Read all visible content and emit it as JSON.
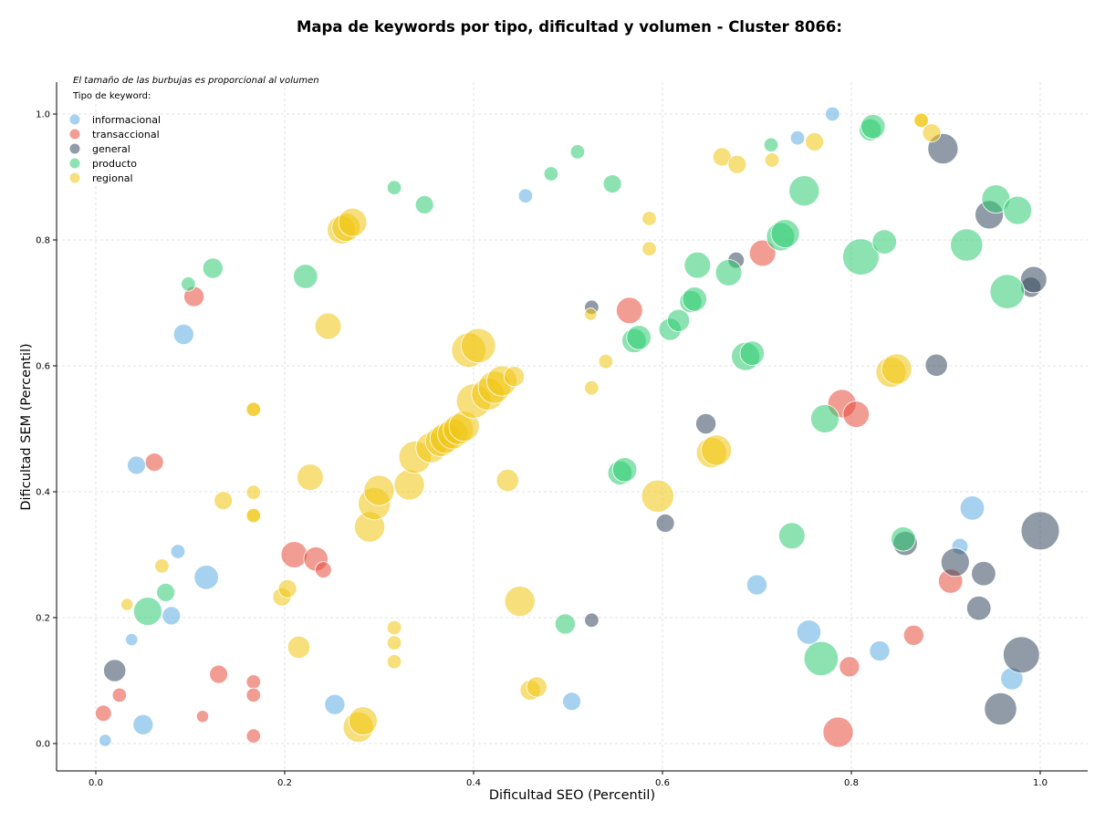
{
  "chart_data": {
    "type": "scatter",
    "title": "Mapa de keywords por tipo, dificultad y volumen - Cluster 8066:",
    "xlabel": "Dificultad SEO (Percentil)",
    "ylabel": "Dificultad SEM (Percentil)",
    "xlim": [
      -0.04,
      1.05
    ],
    "ylim": [
      -0.045,
      1.05
    ],
    "xticks": [
      "0.0",
      "0.2",
      "0.4",
      "0.6",
      "0.8",
      "1.0"
    ],
    "yticks": [
      "0.0",
      "0.2",
      "0.4",
      "0.6",
      "0.8",
      "1.0"
    ],
    "grid": true,
    "annotation": "El tamaño de las burbujas es proporcional al volumen",
    "legend": {
      "title": "Tipo de keyword:",
      "position": "top-left",
      "entries": [
        "informacional",
        "transaccional",
        "general",
        "producto",
        "regional"
      ]
    },
    "colors": {
      "informacional": "#5dade2",
      "transaccional": "#e74c3c",
      "general": "#34495e",
      "producto": "#2ecc71",
      "regional": "#f1c40f"
    },
    "series": [
      {
        "name": "informacional",
        "points": [
          {
            "x": 0.01,
            "y": 0.005,
            "size": 2
          },
          {
            "x": 0.038,
            "y": 0.165,
            "size": 2
          },
          {
            "x": 0.043,
            "y": 0.442,
            "size": 5
          },
          {
            "x": 0.05,
            "y": 0.03,
            "size": 6
          },
          {
            "x": 0.08,
            "y": 0.203,
            "size": 5
          },
          {
            "x": 0.087,
            "y": 0.305,
            "size": 3
          },
          {
            "x": 0.093,
            "y": 0.65,
            "size": 6
          },
          {
            "x": 0.117,
            "y": 0.264,
            "size": 8
          },
          {
            "x": 0.253,
            "y": 0.062,
            "size": 6
          },
          {
            "x": 0.455,
            "y": 0.87,
            "size": 3
          },
          {
            "x": 0.504,
            "y": 0.067,
            "size": 5
          },
          {
            "x": 0.7,
            "y": 0.252,
            "size": 6
          },
          {
            "x": 0.743,
            "y": 0.962,
            "size": 3
          },
          {
            "x": 0.755,
            "y": 0.177,
            "size": 8
          },
          {
            "x": 0.78,
            "y": 1.0,
            "size": 3
          },
          {
            "x": 0.83,
            "y": 0.147,
            "size": 6
          },
          {
            "x": 0.915,
            "y": 0.313,
            "size": 4
          },
          {
            "x": 0.928,
            "y": 0.374,
            "size": 8
          },
          {
            "x": 0.97,
            "y": 0.103,
            "size": 7
          }
        ]
      },
      {
        "name": "transaccional",
        "points": [
          {
            "x": 0.008,
            "y": 0.048,
            "size": 4
          },
          {
            "x": 0.025,
            "y": 0.077,
            "size": 3
          },
          {
            "x": 0.062,
            "y": 0.447,
            "size": 5
          },
          {
            "x": 0.104,
            "y": 0.71,
            "size": 6
          },
          {
            "x": 0.113,
            "y": 0.043,
            "size": 2
          },
          {
            "x": 0.13,
            "y": 0.11,
            "size": 5
          },
          {
            "x": 0.167,
            "y": 0.098,
            "size": 3
          },
          {
            "x": 0.167,
            "y": 0.077,
            "size": 3
          },
          {
            "x": 0.167,
            "y": 0.012,
            "size": 3
          },
          {
            "x": 0.21,
            "y": 0.3,
            "size": 9
          },
          {
            "x": 0.233,
            "y": 0.293,
            "size": 8
          },
          {
            "x": 0.241,
            "y": 0.276,
            "size": 4
          },
          {
            "x": 0.565,
            "y": 0.688,
            "size": 9
          },
          {
            "x": 0.706,
            "y": 0.779,
            "size": 9
          },
          {
            "x": 0.786,
            "y": 0.018,
            "size": 11
          },
          {
            "x": 0.79,
            "y": 0.54,
            "size": 10
          },
          {
            "x": 0.798,
            "y": 0.122,
            "size": 6
          },
          {
            "x": 0.805,
            "y": 0.523,
            "size": 9
          },
          {
            "x": 0.866,
            "y": 0.172,
            "size": 6
          },
          {
            "x": 0.905,
            "y": 0.258,
            "size": 8
          }
        ]
      },
      {
        "name": "general",
        "points": [
          {
            "x": 0.02,
            "y": 0.116,
            "size": 7
          },
          {
            "x": 0.525,
            "y": 0.693,
            "size": 3
          },
          {
            "x": 0.525,
            "y": 0.196,
            "size": 3
          },
          {
            "x": 0.603,
            "y": 0.35,
            "size": 5
          },
          {
            "x": 0.646,
            "y": 0.508,
            "size": 6
          },
          {
            "x": 0.678,
            "y": 0.768,
            "size": 4
          },
          {
            "x": 0.89,
            "y": 0.601,
            "size": 7
          },
          {
            "x": 0.897,
            "y": 0.945,
            "size": 11
          },
          {
            "x": 0.857,
            "y": 0.318,
            "size": 8
          },
          {
            "x": 0.91,
            "y": 0.288,
            "size": 10
          },
          {
            "x": 0.935,
            "y": 0.215,
            "size": 8
          },
          {
            "x": 0.94,
            "y": 0.27,
            "size": 8
          },
          {
            "x": 0.946,
            "y": 0.84,
            "size": 10
          },
          {
            "x": 0.958,
            "y": 0.055,
            "size": 12
          },
          {
            "x": 0.98,
            "y": 0.141,
            "size": 14
          },
          {
            "x": 0.99,
            "y": 0.725,
            "size": 6
          },
          {
            "x": 0.993,
            "y": 0.737,
            "size": 9
          },
          {
            "x": 1.0,
            "y": 0.338,
            "size": 15
          }
        ]
      },
      {
        "name": "producto",
        "points": [
          {
            "x": 0.055,
            "y": 0.21,
            "size": 10
          },
          {
            "x": 0.074,
            "y": 0.24,
            "size": 5
          },
          {
            "x": 0.098,
            "y": 0.73,
            "size": 3
          },
          {
            "x": 0.124,
            "y": 0.755,
            "size": 6
          },
          {
            "x": 0.222,
            "y": 0.742,
            "size": 8
          },
          {
            "x": 0.316,
            "y": 0.883,
            "size": 3
          },
          {
            "x": 0.348,
            "y": 0.856,
            "size": 5
          },
          {
            "x": 0.482,
            "y": 0.905,
            "size": 3
          },
          {
            "x": 0.497,
            "y": 0.19,
            "size": 6
          },
          {
            "x": 0.51,
            "y": 0.94,
            "size": 3
          },
          {
            "x": 0.547,
            "y": 0.889,
            "size": 5
          },
          {
            "x": 0.555,
            "y": 0.43,
            "size": 8
          },
          {
            "x": 0.56,
            "y": 0.435,
            "size": 8
          },
          {
            "x": 0.57,
            "y": 0.64,
            "size": 8
          },
          {
            "x": 0.575,
            "y": 0.645,
            "size": 8
          },
          {
            "x": 0.608,
            "y": 0.658,
            "size": 7
          },
          {
            "x": 0.617,
            "y": 0.672,
            "size": 7
          },
          {
            "x": 0.63,
            "y": 0.702,
            "size": 7
          },
          {
            "x": 0.634,
            "y": 0.706,
            "size": 8
          },
          {
            "x": 0.637,
            "y": 0.76,
            "size": 9
          },
          {
            "x": 0.67,
            "y": 0.748,
            "size": 9
          },
          {
            "x": 0.688,
            "y": 0.615,
            "size": 10
          },
          {
            "x": 0.695,
            "y": 0.62,
            "size": 8
          },
          {
            "x": 0.715,
            "y": 0.951,
            "size": 3
          },
          {
            "x": 0.725,
            "y": 0.805,
            "size": 10
          },
          {
            "x": 0.73,
            "y": 0.81,
            "size": 10
          },
          {
            "x": 0.737,
            "y": 0.33,
            "size": 9
          },
          {
            "x": 0.75,
            "y": 0.878,
            "size": 11
          },
          {
            "x": 0.768,
            "y": 0.135,
            "size": 13
          },
          {
            "x": 0.772,
            "y": 0.516,
            "size": 10
          },
          {
            "x": 0.81,
            "y": 0.773,
            "size": 14
          },
          {
            "x": 0.82,
            "y": 0.975,
            "size": 7
          },
          {
            "x": 0.823,
            "y": 0.98,
            "size": 8
          },
          {
            "x": 0.835,
            "y": 0.797,
            "size": 8
          },
          {
            "x": 0.855,
            "y": 0.325,
            "size": 8
          },
          {
            "x": 0.922,
            "y": 0.792,
            "size": 12
          },
          {
            "x": 0.953,
            "y": 0.865,
            "size": 10
          },
          {
            "x": 0.965,
            "y": 0.718,
            "size": 13
          },
          {
            "x": 0.976,
            "y": 0.847,
            "size": 10
          }
        ]
      },
      {
        "name": "regional",
        "points": [
          {
            "x": 0.033,
            "y": 0.221,
            "size": 2
          },
          {
            "x": 0.07,
            "y": 0.282,
            "size": 3
          },
          {
            "x": 0.135,
            "y": 0.386,
            "size": 5
          },
          {
            "x": 0.167,
            "y": 0.53,
            "size": 3
          },
          {
            "x": 0.167,
            "y": 0.531,
            "size": 3
          },
          {
            "x": 0.167,
            "y": 0.399,
            "size": 3
          },
          {
            "x": 0.167,
            "y": 0.363,
            "size": 3
          },
          {
            "x": 0.167,
            "y": 0.362,
            "size": 3
          },
          {
            "x": 0.197,
            "y": 0.233,
            "size": 5
          },
          {
            "x": 0.203,
            "y": 0.246,
            "size": 5
          },
          {
            "x": 0.215,
            "y": 0.153,
            "size": 7
          },
          {
            "x": 0.227,
            "y": 0.423,
            "size": 9
          },
          {
            "x": 0.246,
            "y": 0.663,
            "size": 9
          },
          {
            "x": 0.26,
            "y": 0.816,
            "size": 10
          },
          {
            "x": 0.265,
            "y": 0.82,
            "size": 10
          },
          {
            "x": 0.272,
            "y": 0.828,
            "size": 10
          },
          {
            "x": 0.278,
            "y": 0.026,
            "size": 11
          },
          {
            "x": 0.283,
            "y": 0.036,
            "size": 10
          },
          {
            "x": 0.29,
            "y": 0.344,
            "size": 11
          },
          {
            "x": 0.295,
            "y": 0.381,
            "size": 12
          },
          {
            "x": 0.3,
            "y": 0.402,
            "size": 11
          },
          {
            "x": 0.316,
            "y": 0.184,
            "size": 3
          },
          {
            "x": 0.316,
            "y": 0.16,
            "size": 3
          },
          {
            "x": 0.316,
            "y": 0.13,
            "size": 3
          },
          {
            "x": 0.332,
            "y": 0.411,
            "size": 11
          },
          {
            "x": 0.338,
            "y": 0.455,
            "size": 12
          },
          {
            "x": 0.355,
            "y": 0.47,
            "size": 11
          },
          {
            "x": 0.365,
            "y": 0.48,
            "size": 11
          },
          {
            "x": 0.37,
            "y": 0.485,
            "size": 11
          },
          {
            "x": 0.378,
            "y": 0.492,
            "size": 11
          },
          {
            "x": 0.384,
            "y": 0.499,
            "size": 11
          },
          {
            "x": 0.39,
            "y": 0.504,
            "size": 11
          },
          {
            "x": 0.395,
            "y": 0.625,
            "size": 13
          },
          {
            "x": 0.405,
            "y": 0.632,
            "size": 13
          },
          {
            "x": 0.4,
            "y": 0.544,
            "size": 13
          },
          {
            "x": 0.415,
            "y": 0.555,
            "size": 12
          },
          {
            "x": 0.422,
            "y": 0.566,
            "size": 12
          },
          {
            "x": 0.43,
            "y": 0.576,
            "size": 11
          },
          {
            "x": 0.443,
            "y": 0.583,
            "size": 6
          },
          {
            "x": 0.436,
            "y": 0.418,
            "size": 7
          },
          {
            "x": 0.449,
            "y": 0.226,
            "size": 11
          },
          {
            "x": 0.46,
            "y": 0.085,
            "size": 6
          },
          {
            "x": 0.467,
            "y": 0.09,
            "size": 6
          },
          {
            "x": 0.524,
            "y": 0.682,
            "size": 2
          },
          {
            "x": 0.525,
            "y": 0.565,
            "size": 3
          },
          {
            "x": 0.54,
            "y": 0.607,
            "size": 3
          },
          {
            "x": 0.586,
            "y": 0.834,
            "size": 3
          },
          {
            "x": 0.586,
            "y": 0.786,
            "size": 3
          },
          {
            "x": 0.595,
            "y": 0.393,
            "size": 12
          },
          {
            "x": 0.652,
            "y": 0.462,
            "size": 11
          },
          {
            "x": 0.657,
            "y": 0.466,
            "size": 11
          },
          {
            "x": 0.663,
            "y": 0.932,
            "size": 5
          },
          {
            "x": 0.679,
            "y": 0.92,
            "size": 5
          },
          {
            "x": 0.716,
            "y": 0.927,
            "size": 3
          },
          {
            "x": 0.761,
            "y": 0.956,
            "size": 5
          },
          {
            "x": 0.842,
            "y": 0.59,
            "size": 11
          },
          {
            "x": 0.848,
            "y": 0.595,
            "size": 11
          },
          {
            "x": 0.874,
            "y": 0.99,
            "size": 3
          },
          {
            "x": 0.874,
            "y": 0.99,
            "size": 3
          },
          {
            "x": 0.885,
            "y": 0.97,
            "size": 5
          }
        ]
      }
    ]
  }
}
